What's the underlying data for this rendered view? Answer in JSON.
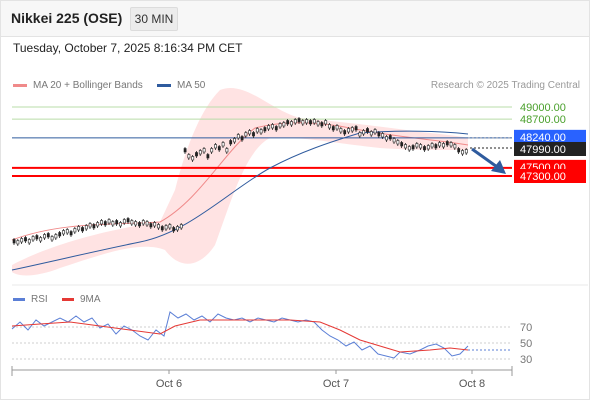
{
  "header": {
    "title": "Nikkei 225 (OSE)",
    "timeframe": "30 MIN"
  },
  "timestamp": "Tuesday, October 7, 2025 8:16:34 PM CET",
  "legend": {
    "items": [
      {
        "label": "MA 20 + Bollinger Bands",
        "color": "#f08a8a"
      },
      {
        "label": "MA 50",
        "color": "#2f5b9e"
      }
    ],
    "credit": "Research © 2025 Trading Central"
  },
  "price_levels": [
    {
      "label": "49000.00",
      "value": 49000,
      "kind": "resistance",
      "color": "#4aa02c"
    },
    {
      "label": "48700.00",
      "value": 48700,
      "kind": "resistance",
      "color": "#4aa02c"
    },
    {
      "label": "48240.00",
      "value": 48240,
      "kind": "pivot",
      "color": "#2962ff"
    },
    {
      "label": "47990.00",
      "value": 47990,
      "kind": "last",
      "color": "#222222"
    },
    {
      "label": "47500.00",
      "value": 47500,
      "kind": "support",
      "color": "#ff0000"
    },
    {
      "label": "47300.00",
      "value": 47300,
      "kind": "support",
      "color": "#ff0000"
    }
  ],
  "rsi_panel": {
    "legend": [
      {
        "label": "RSI",
        "color": "#5b7fd6"
      },
      {
        "label": "9MA",
        "color": "#e53935"
      }
    ],
    "ticks": [
      "70",
      "50",
      "30"
    ]
  },
  "x_axis": {
    "labels": [
      "Oct 6",
      "Oct 7",
      "Oct 8"
    ]
  },
  "colors": {
    "candle": "#222222",
    "ma20": "#f08a8a",
    "band_fill": "#ffe3e3",
    "ma50": "#2f5b9e",
    "arrow": "#2f5b9e"
  }
}
